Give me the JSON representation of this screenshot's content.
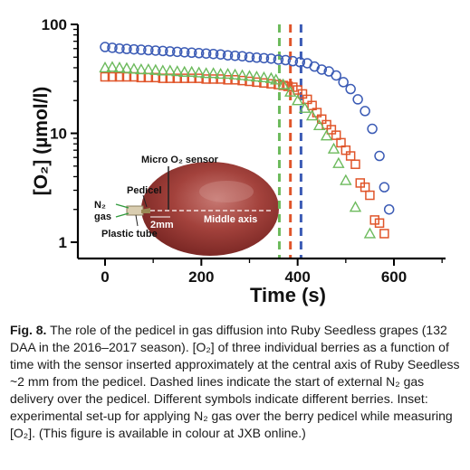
{
  "chart_data": {
    "type": "scatter",
    "title": "",
    "xlabel": "Time (s)",
    "ylabel": "[O₂] (µmol/l)",
    "xlim": [
      0,
      700
    ],
    "ylim": [
      1,
      100
    ],
    "y_scale": "log",
    "x_ticks": [
      "0",
      "200",
      "400",
      "600"
    ],
    "y_ticks": [
      "1",
      "10",
      "100"
    ],
    "grid": false,
    "series": [
      {
        "marker": "circle",
        "color": "#3b5bb5",
        "x": [
          0,
          15,
          30,
          45,
          60,
          75,
          90,
          105,
          120,
          135,
          150,
          165,
          180,
          195,
          210,
          225,
          240,
          255,
          270,
          285,
          300,
          315,
          330,
          345,
          360,
          375,
          390,
          405,
          420,
          435,
          450,
          465,
          480,
          495,
          510,
          525,
          540,
          555,
          570,
          580,
          590
        ],
        "y": [
          62,
          61,
          60,
          59.5,
          59,
          58.5,
          58,
          57.5,
          57,
          56.5,
          56,
          55.5,
          55,
          54.5,
          54,
          53.5,
          53,
          52,
          51.5,
          51,
          50,
          49.5,
          49,
          48.5,
          47.5,
          47,
          46,
          45,
          44,
          41,
          38.5,
          37,
          34,
          29.5,
          25.5,
          20.5,
          16,
          11,
          6.2,
          3.2,
          2
        ]
      },
      {
        "marker": "square",
        "color": "#e0552a",
        "x": [
          0,
          15,
          30,
          45,
          60,
          75,
          90,
          105,
          120,
          135,
          150,
          165,
          180,
          195,
          210,
          225,
          240,
          255,
          270,
          285,
          300,
          315,
          330,
          345,
          360,
          370,
          380,
          390,
          400,
          410,
          420,
          430,
          440,
          450,
          460,
          470,
          480,
          490,
          500,
          510,
          520,
          530,
          540,
          550,
          560,
          570,
          580
        ],
        "y": [
          33,
          33,
          33,
          33,
          33,
          32.5,
          32.5,
          32.5,
          32,
          32,
          32,
          32,
          32,
          32,
          31.5,
          31.5,
          31.5,
          31,
          31,
          30.5,
          30,
          29.5,
          29,
          28.5,
          28,
          27.5,
          27,
          26.5,
          25,
          23,
          20.5,
          18,
          15.5,
          13.5,
          12,
          10.8,
          9.6,
          8.2,
          7,
          6.2,
          5.2,
          3.5,
          3.2,
          2.7,
          1.6,
          1.5,
          1.2
        ]
      },
      {
        "marker": "triangle",
        "color": "#6cba5c",
        "x": [
          0,
          15,
          30,
          45,
          60,
          75,
          90,
          105,
          120,
          135,
          150,
          165,
          180,
          195,
          210,
          225,
          240,
          255,
          270,
          285,
          300,
          315,
          330,
          345,
          355,
          370,
          385,
          400,
          415,
          430,
          445,
          460,
          475,
          485,
          500,
          520,
          550
        ],
        "y": [
          40,
          40.5,
          40,
          39.5,
          39,
          38.5,
          38.5,
          38,
          37.5,
          37.5,
          37,
          36.5,
          36.5,
          36,
          35.5,
          35.5,
          35,
          35,
          34.5,
          34,
          33.5,
          33,
          32.5,
          32,
          31,
          28,
          24,
          20,
          17,
          14.5,
          11.8,
          9.5,
          7.2,
          5.3,
          3.7,
          2.1,
          1.2
        ]
      }
    ],
    "vlines": [
      {
        "x": 362,
        "color": "#6cba5c"
      },
      {
        "x": 385,
        "color": "#e0552a"
      },
      {
        "x": 407,
        "color": "#3b5bb5"
      }
    ]
  },
  "inset": {
    "micro_o2_sensor": "Micro O₂ sensor",
    "pedicel": "Pedicel",
    "n2_gas_line1": "N₂",
    "n2_gas_line2": "gas",
    "distance": "2mm",
    "middle_axis": "Middle axis",
    "plastic_tube": "Plastic tube"
  },
  "caption": {
    "label": "Fig. 8.",
    "text": "The role of the pedicel in gas diffusion into Ruby Seedless grapes (132 DAA in the 2016–2017 season). [O₂] of three individual berries as a function of time with the sensor inserted approximately at the central axis of Ruby Seedless ~2 mm from the pedicel. Dashed lines indicate the start of external N₂ gas delivery over the pedicel. Different symbols indicate different berries. Inset: experimental set-up for applying N₂ gas over the berry pedicel while measuring [O₂]. (This figure is available in colour at JXB online.)"
  }
}
